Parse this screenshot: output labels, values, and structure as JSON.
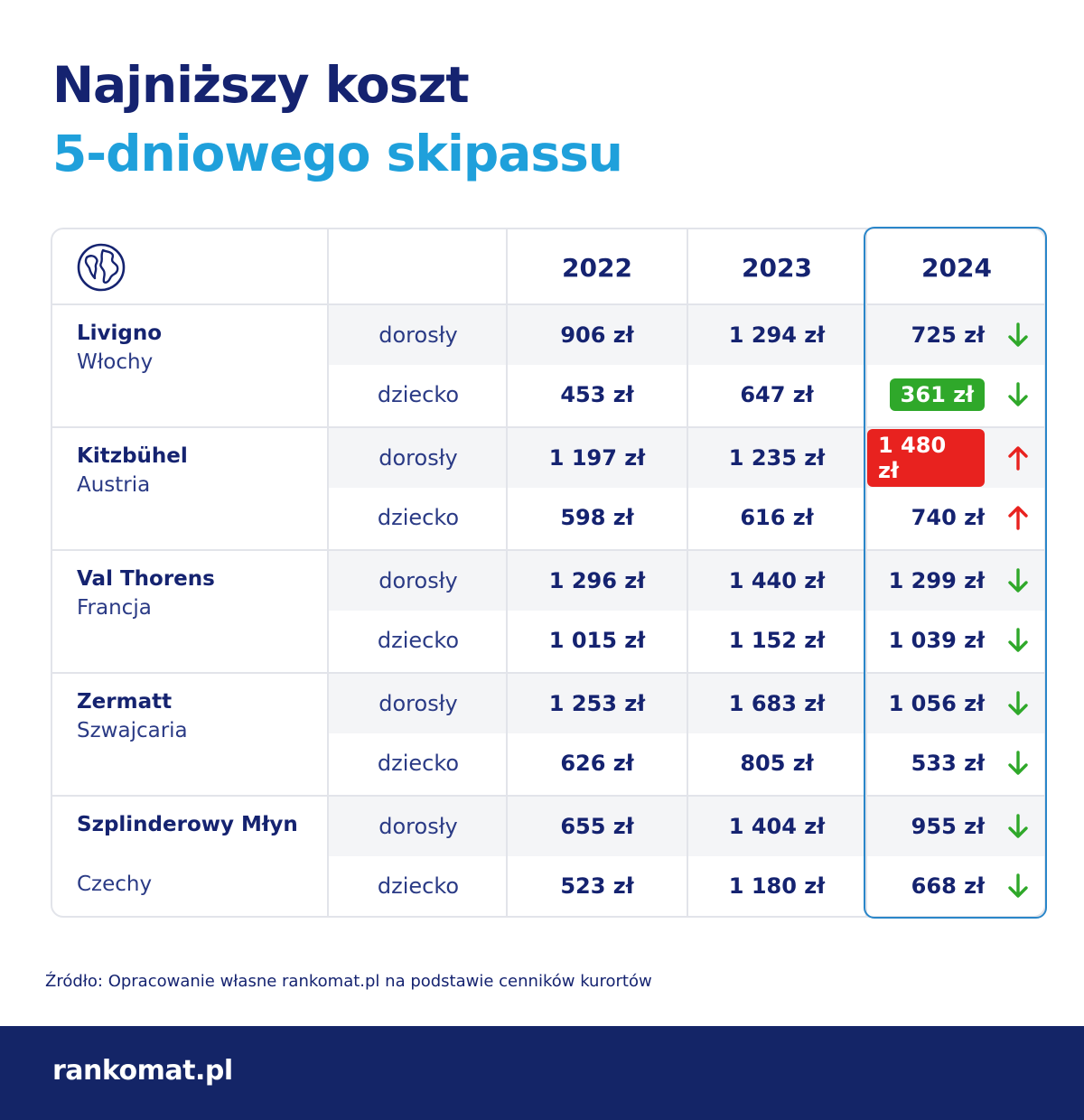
{
  "title": {
    "line1": "Najniższy koszt",
    "line2": "5-dniowego skipassu"
  },
  "chart_data": {
    "type": "table",
    "columns": [
      "",
      "",
      "2022",
      "2023",
      "2024"
    ],
    "rows": [
      {
        "resort": "Livigno",
        "country": "Włochy",
        "prices": [
          {
            "type": "dorosły",
            "y2022": "906 zł",
            "y2023": "1 294 zł",
            "y2024": "725 zł",
            "trend": "down",
            "highlight": ""
          },
          {
            "type": "dziecko",
            "y2022": "453 zł",
            "y2023": "647 zł",
            "y2024": "361 zł",
            "trend": "down",
            "highlight": "lowest"
          }
        ]
      },
      {
        "resort": "Kitzbühel",
        "country": "Austria",
        "prices": [
          {
            "type": "dorosły",
            "y2022": "1 197 zł",
            "y2023": "1 235 zł",
            "y2024": "1 480 zł",
            "trend": "up",
            "highlight": "highest"
          },
          {
            "type": "dziecko",
            "y2022": "598 zł",
            "y2023": "616 zł",
            "y2024": "740 zł",
            "trend": "up",
            "highlight": ""
          }
        ]
      },
      {
        "resort": "Val Thorens",
        "country": "Francja",
        "prices": [
          {
            "type": "dorosły",
            "y2022": "1 296 zł",
            "y2023": "1 440 zł",
            "y2024": "1 299 zł",
            "trend": "down",
            "highlight": ""
          },
          {
            "type": "dziecko",
            "y2022": "1 015 zł",
            "y2023": "1 152 zł",
            "y2024": "1 039 zł",
            "trend": "down",
            "highlight": ""
          }
        ]
      },
      {
        "resort": "Zermatt",
        "country": "Szwajcaria",
        "prices": [
          {
            "type": "dorosły",
            "y2022": "1 253 zł",
            "y2023": "1 683 zł",
            "y2024": "1 056 zł",
            "trend": "down",
            "highlight": ""
          },
          {
            "type": "dziecko",
            "y2022": "626 zł",
            "y2023": "805 zł",
            "y2024": "533 zł",
            "trend": "down",
            "highlight": ""
          }
        ]
      },
      {
        "resort": "Szplinderowy Młyn",
        "country": "Czechy",
        "prices": [
          {
            "type": "dorosły",
            "y2022": "655 zł",
            "y2023": "1 404 zł",
            "y2024": "955 zł",
            "trend": "down",
            "highlight": ""
          },
          {
            "type": "dziecko",
            "y2022": "523 zł",
            "y2023": "1 180 zł",
            "y2024": "668 zł",
            "trend": "down",
            "highlight": ""
          }
        ]
      }
    ]
  },
  "colors": {
    "navy": "#152370",
    "blue": "#1fa0db",
    "green": "#2fa82a",
    "red": "#e8221f",
    "footer": "#142567"
  },
  "icons": {
    "header": "globe-icon",
    "down": "arrow-down-icon",
    "up": "arrow-up-icon"
  },
  "source": "Źródło: Opracowanie własne rankomat.pl na podstawie cenników kurortów",
  "logo": "rankomat.pl"
}
